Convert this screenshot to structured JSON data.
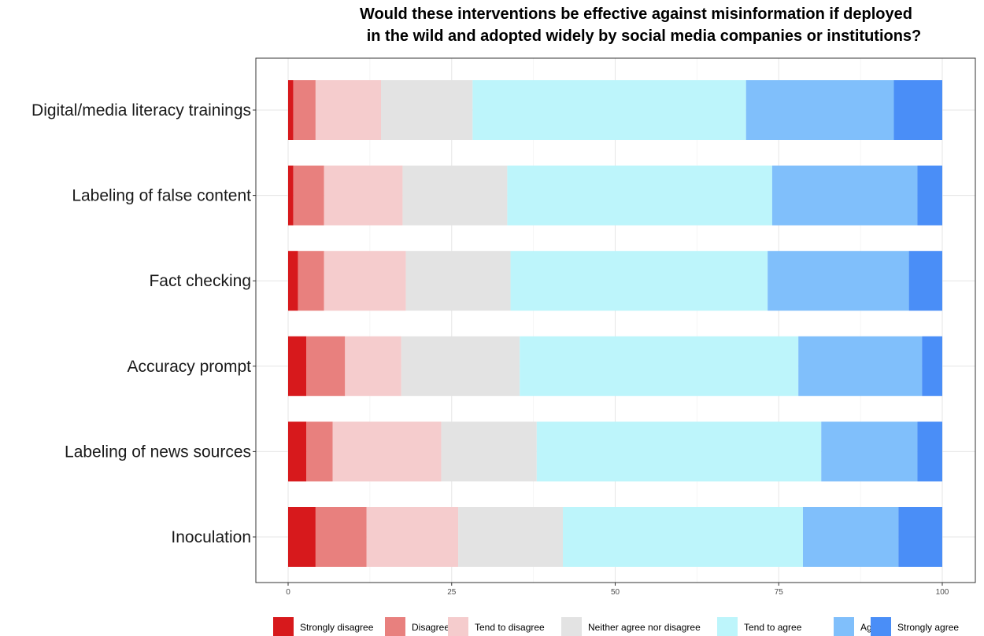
{
  "chart_data": {
    "type": "bar",
    "orientation": "horizontal",
    "stacked": true,
    "title_lines": [
      "Would these interventions be effective against misinformation if deployed",
      "in the wild and adopted widely by social media companies or institutions?"
    ],
    "categories": [
      "Digital/media literacy trainings",
      "Labeling of false content",
      "Fact checking",
      "Accuracy prompt",
      "Labeling of news sources",
      "Inoculation"
    ],
    "series": [
      {
        "name": "Strongly disagree",
        "color": "#d7191c",
        "values": [
          0.8,
          0.8,
          1.5,
          2.8,
          2.8,
          4.2
        ]
      },
      {
        "name": "Disagree",
        "color": "#e8807e",
        "values": [
          3.4,
          4.7,
          4.0,
          5.9,
          4.0,
          7.8
        ]
      },
      {
        "name": "Tend to disagree",
        "color": "#f5cccd",
        "values": [
          10.0,
          12.0,
          12.5,
          8.6,
          16.6,
          14.0
        ]
      },
      {
        "name": "Neither agree nor disagree",
        "color": "#e3e3e3",
        "values": [
          14.0,
          16.0,
          16.0,
          18.1,
          14.6,
          16.0
        ]
      },
      {
        "name": "Tend to agree",
        "color": "#bdf5fb",
        "values": [
          41.8,
          40.5,
          39.3,
          42.6,
          43.5,
          36.7
        ]
      },
      {
        "name": "Agree",
        "color": "#80bffb",
        "values": [
          22.6,
          22.2,
          21.6,
          18.9,
          14.7,
          14.6
        ]
      },
      {
        "name": "Strongly agree",
        "color": "#4a8ef7",
        "values": [
          7.4,
          3.8,
          5.1,
          3.1,
          3.8,
          6.7
        ]
      }
    ],
    "xlim": [
      0,
      100
    ],
    "xticks": [
      0,
      25,
      50,
      75,
      100
    ],
    "grid": true,
    "legend_position": "bottom"
  }
}
